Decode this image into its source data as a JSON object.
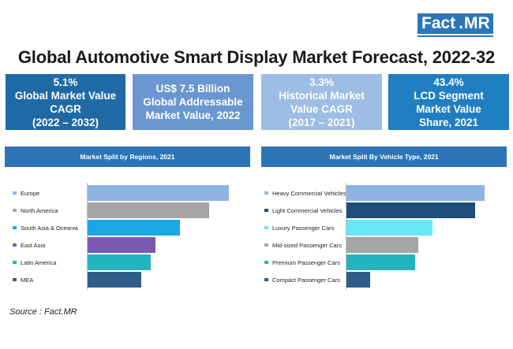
{
  "logo": {
    "fact": "Fact",
    "dot": ".",
    "mr": "MR"
  },
  "title": "Global Automotive Smart Display Market Forecast, 2022-32",
  "kpis": [
    {
      "value": "5.1%",
      "l1": "Global Market Value",
      "l2": "CAGR",
      "l3": "(2022 – 2032)"
    },
    {
      "value": "US$ 7.5 Billion",
      "l1": "Global Addressable",
      "l2": "Market Value, 2022",
      "l3": ""
    },
    {
      "value": "3.3%",
      "l1": "Historical Market",
      "l2": "Value CAGR",
      "l3": "(2017 – 2021)"
    },
    {
      "value": "43.4%",
      "l1": "LCD Segment",
      "l2": "Market Value",
      "l3": "Share, 2021"
    }
  ],
  "chart_data": [
    {
      "type": "bar",
      "orientation": "horizontal",
      "title": "Market Split by Regions, 2021",
      "categories": [
        "Europe",
        "North America",
        "South Asia & Oceania",
        "East Asia",
        "Latin America",
        "MEA"
      ],
      "values": [
        29,
        25,
        19,
        14,
        13,
        11
      ],
      "colors": [
        "#8fb4e3",
        "#a5a5a5",
        "#19a7e5",
        "#7a5ab0",
        "#22b5bd",
        "#2f5d8a"
      ],
      "xlim": [
        0,
        30
      ],
      "grid": false,
      "legend": "none"
    },
    {
      "type": "bar",
      "orientation": "horizontal",
      "title": "Market Split By Vehicle Type, 2021",
      "categories": [
        "Heavy Commercial Vehicles",
        "Light Commercial Vehicles",
        "Luxury Passenger Cars",
        "Mid-sized Passenger Cars",
        "Premium Passenger Cars",
        "Compact Passenger Cars"
      ],
      "values": [
        29,
        27,
        18,
        15,
        14.5,
        5
      ],
      "colors": [
        "#8fb4e3",
        "#1f4e79",
        "#66e8f5",
        "#a5a5a5",
        "#22b5bd",
        "#2f5d8a"
      ],
      "xlim": [
        0,
        30
      ],
      "grid": false,
      "legend": "none"
    }
  ],
  "source": "Source : Fact.MR"
}
